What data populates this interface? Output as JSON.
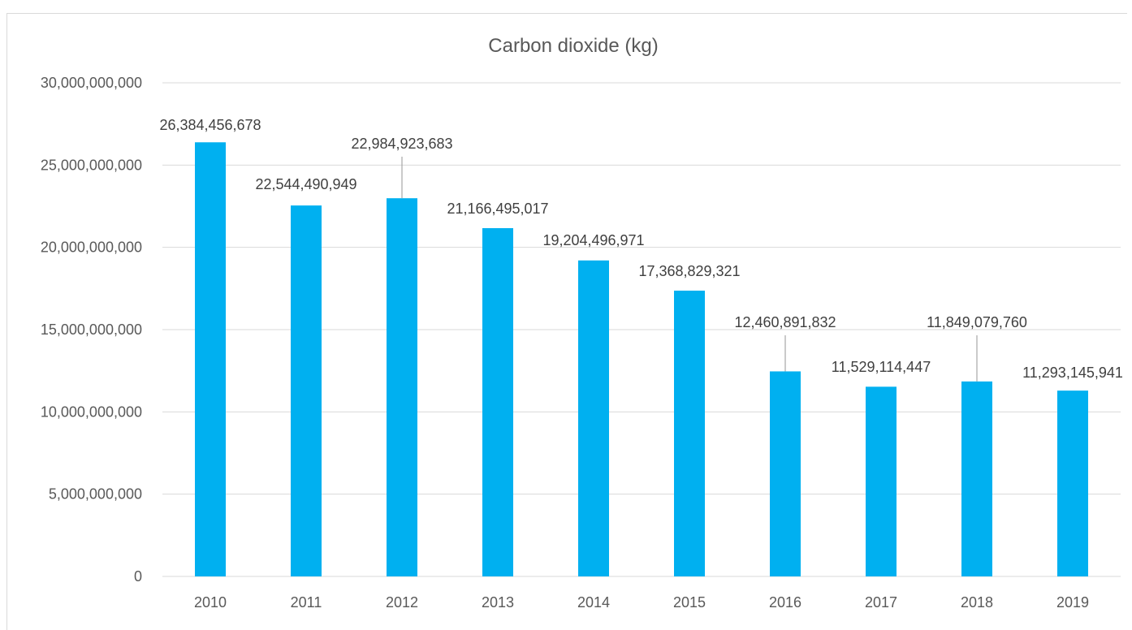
{
  "chart_data": {
    "type": "bar",
    "title": "Carbon dioxide (kg)",
    "xlabel": "",
    "ylabel": "",
    "categories": [
      "2010",
      "2011",
      "2012",
      "2013",
      "2014",
      "2015",
      "2016",
      "2017",
      "2018",
      "2019"
    ],
    "values": [
      26384456678,
      22544490949,
      22984923683,
      21166495017,
      19204496971,
      17368829321,
      12460891832,
      11529114447,
      11849079760,
      11293145941
    ],
    "value_labels": [
      "26,384,456,678",
      "22,544,490,949",
      "22,984,923,683",
      "21,166,495,017",
      "19,204,496,971",
      "17,368,829,321",
      "12,460,891,832",
      "11,529,114,447",
      "11,849,079,760",
      "11,293,145,941"
    ],
    "ylim": [
      0,
      30000000000
    ],
    "yticks": [
      0,
      5000000000,
      10000000000,
      15000000000,
      20000000000,
      25000000000,
      30000000000
    ],
    "ytick_labels": [
      "0",
      "5,000,000,000",
      "10,000,000,000",
      "15,000,000,000",
      "20,000,000,000",
      "25,000,000,000",
      "30,000,000,000"
    ],
    "grid": true,
    "legend": "none",
    "bar_color": "#00B0F0"
  }
}
